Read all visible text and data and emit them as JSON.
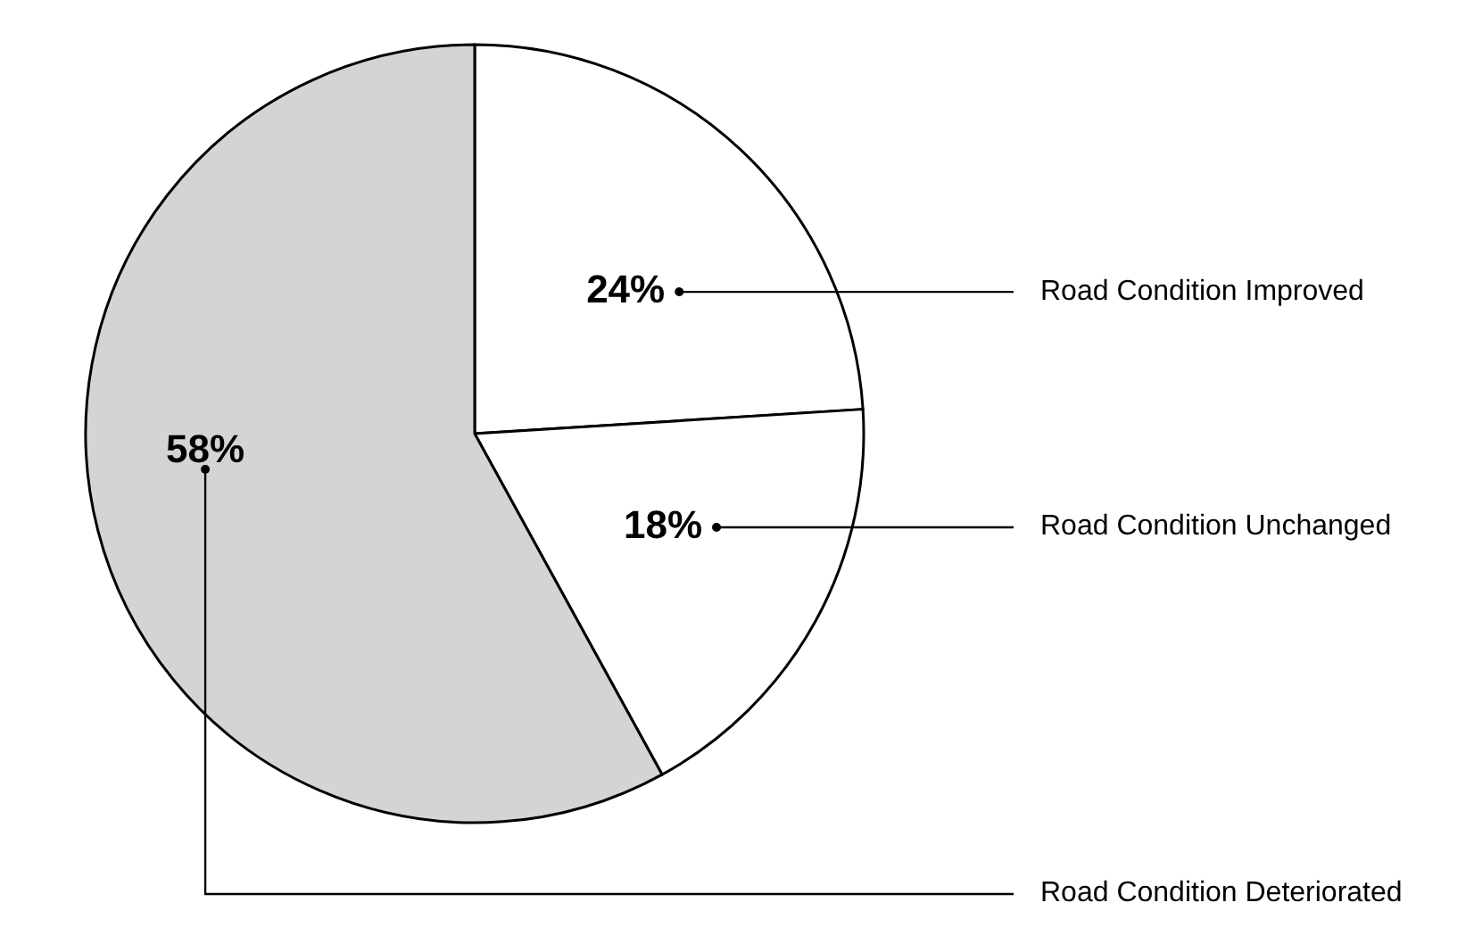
{
  "chart_data": {
    "type": "pie",
    "categories": [
      "Road Condition Improved",
      "Road Condition Unchanged",
      "Road Condition Deteriorated"
    ],
    "values": [
      24,
      18,
      58
    ],
    "colors": [
      "#ffffff",
      "#ffffff",
      "#d4d4d4"
    ],
    "value_labels": [
      "24%",
      "18%",
      "58%"
    ]
  }
}
